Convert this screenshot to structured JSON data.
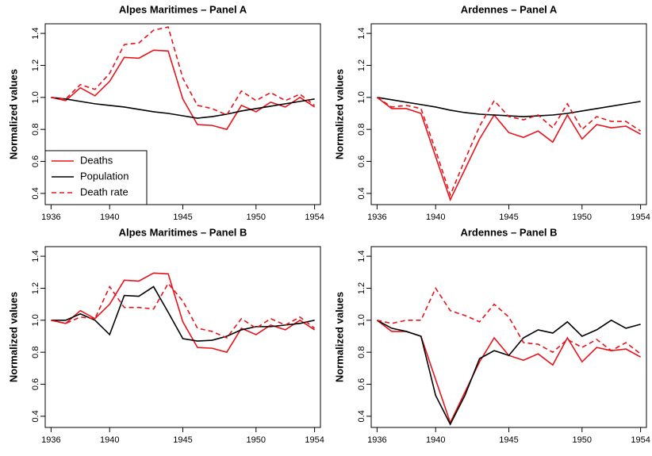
{
  "chart_data": [
    {
      "type": "line",
      "title": "Alpes Maritimes – Panel A",
      "ylabel": "Normalized values",
      "x": [
        1936,
        1937,
        1938,
        1939,
        1940,
        1941,
        1942,
        1943,
        1944,
        1945,
        1946,
        1947,
        1948,
        1949,
        1950,
        1951,
        1952,
        1953,
        1954
      ],
      "xlim": [
        1935.6,
        1954.4
      ],
      "xticks": [
        1936,
        1940,
        1945,
        1950,
        1954
      ],
      "ylim": [
        0.33,
        1.46
      ],
      "yticks": [
        0.4,
        0.6,
        0.8,
        {
          "value": 1,
          "label": "1.0"
        },
        1.2,
        1.4
      ],
      "legend": "bottom-left",
      "series": [
        {
          "name": "Deaths",
          "color": "#e8131b",
          "dash": false,
          "values": [
            1.0,
            0.98,
            1.06,
            1.01,
            1.1,
            1.25,
            1.245,
            1.295,
            1.29,
            0.99,
            0.83,
            0.825,
            0.8,
            0.95,
            0.91,
            0.97,
            0.94,
            1.0,
            0.94
          ]
        },
        {
          "name": "Population",
          "color": "#000000",
          "dash": false,
          "values": [
            1.0,
            0.99,
            0.975,
            0.96,
            0.95,
            0.94,
            0.925,
            0.91,
            0.9,
            0.885,
            0.87,
            0.88,
            0.895,
            0.915,
            0.93,
            0.945,
            0.96,
            0.975,
            0.99
          ]
        },
        {
          "name": "Death rate",
          "color": "#e8131b",
          "dash": true,
          "values": [
            1.0,
            0.99,
            1.08,
            1.05,
            1.15,
            1.33,
            1.34,
            1.42,
            1.44,
            1.12,
            0.95,
            0.93,
            0.89,
            1.04,
            0.98,
            1.03,
            0.98,
            1.02,
            0.95
          ]
        }
      ]
    },
    {
      "type": "line",
      "title": "Ardennes – Panel A",
      "ylabel": "Normalized values",
      "x": [
        1936,
        1937,
        1938,
        1939,
        1940,
        1941,
        1942,
        1943,
        1944,
        1945,
        1946,
        1947,
        1948,
        1949,
        1950,
        1951,
        1952,
        1953,
        1954
      ],
      "xlim": [
        1935.6,
        1954.4
      ],
      "xticks": [
        1936,
        1940,
        1945,
        1950,
        1954
      ],
      "ylim": [
        0.33,
        1.46
      ],
      "yticks": [
        0.4,
        0.6,
        0.8,
        {
          "value": 1,
          "label": "1.0"
        },
        1.2,
        1.4
      ],
      "series": [
        {
          "color": "#e8131b",
          "dash": false,
          "values": [
            1.0,
            0.93,
            0.93,
            0.9,
            0.63,
            0.36,
            0.55,
            0.74,
            0.89,
            0.78,
            0.75,
            0.79,
            0.72,
            0.89,
            0.74,
            0.83,
            0.81,
            0.82,
            0.77
          ]
        },
        {
          "color": "#000000",
          "dash": false,
          "values": [
            1.0,
            0.985,
            0.97,
            0.955,
            0.94,
            0.92,
            0.905,
            0.895,
            0.89,
            0.885,
            0.88,
            0.885,
            0.89,
            0.9,
            0.915,
            0.93,
            0.945,
            0.96,
            0.975
          ]
        },
        {
          "color": "#e8131b",
          "dash": true,
          "values": [
            1.0,
            0.94,
            0.95,
            0.93,
            0.67,
            0.39,
            0.61,
            0.82,
            0.98,
            0.88,
            0.86,
            0.89,
            0.81,
            0.96,
            0.8,
            0.88,
            0.85,
            0.85,
            0.79
          ]
        }
      ]
    },
    {
      "type": "line",
      "title": "Alpes Maritimes – Panel B",
      "ylabel": "Normalized values",
      "x": [
        1936,
        1937,
        1938,
        1939,
        1940,
        1941,
        1942,
        1943,
        1944,
        1945,
        1946,
        1947,
        1948,
        1949,
        1950,
        1951,
        1952,
        1953,
        1954
      ],
      "xlim": [
        1935.6,
        1954.4
      ],
      "xticks": [
        1936,
        1940,
        1945,
        1950,
        1954
      ],
      "ylim": [
        0.33,
        1.46
      ],
      "yticks": [
        0.4,
        0.6,
        0.8,
        {
          "value": 1,
          "label": "1.0"
        },
        1.2,
        1.4
      ],
      "series": [
        {
          "color": "#e8131b",
          "dash": false,
          "values": [
            1.0,
            0.98,
            1.06,
            1.01,
            1.1,
            1.25,
            1.245,
            1.295,
            1.29,
            0.99,
            0.83,
            0.825,
            0.8,
            0.95,
            0.91,
            0.97,
            0.94,
            1.0,
            0.94
          ]
        },
        {
          "color": "#000000",
          "dash": false,
          "values": [
            1.0,
            1.0,
            1.04,
            1.0,
            0.91,
            1.155,
            1.15,
            1.21,
            1.05,
            0.885,
            0.87,
            0.875,
            0.9,
            0.94,
            0.96,
            0.96,
            0.97,
            0.98,
            1.0
          ]
        },
        {
          "color": "#e8131b",
          "dash": true,
          "values": [
            1.0,
            0.98,
            1.02,
            1.01,
            1.21,
            1.08,
            1.08,
            1.07,
            1.23,
            1.12,
            0.95,
            0.93,
            0.89,
            1.01,
            0.95,
            1.01,
            0.97,
            1.02,
            0.95
          ]
        }
      ]
    },
    {
      "type": "line",
      "title": "Ardennes – Panel B",
      "ylabel": "Normalized values",
      "x": [
        1936,
        1937,
        1938,
        1939,
        1940,
        1941,
        1942,
        1943,
        1944,
        1945,
        1946,
        1947,
        1948,
        1949,
        1950,
        1951,
        1952,
        1953,
        1954
      ],
      "xlim": [
        1935.6,
        1954.4
      ],
      "xticks": [
        1936,
        1940,
        1945,
        1950,
        1954
      ],
      "ylim": [
        0.33,
        1.46
      ],
      "yticks": [
        0.4,
        0.6,
        0.8,
        {
          "value": 1,
          "label": "1.0"
        },
        1.2,
        1.4
      ],
      "series": [
        {
          "color": "#e8131b",
          "dash": false,
          "values": [
            1.0,
            0.93,
            0.93,
            0.9,
            0.63,
            0.36,
            0.55,
            0.74,
            0.89,
            0.78,
            0.75,
            0.79,
            0.72,
            0.89,
            0.74,
            0.83,
            0.81,
            0.82,
            0.77
          ]
        },
        {
          "color": "#000000",
          "dash": false,
          "values": [
            1.0,
            0.95,
            0.93,
            0.9,
            0.53,
            0.35,
            0.53,
            0.76,
            0.81,
            0.78,
            0.89,
            0.94,
            0.92,
            0.99,
            0.9,
            0.94,
            1.0,
            0.95,
            0.975
          ]
        },
        {
          "color": "#e8131b",
          "dash": true,
          "values": [
            1.0,
            0.98,
            1.0,
            1.0,
            1.2,
            1.06,
            1.03,
            0.99,
            1.1,
            1.02,
            0.86,
            0.85,
            0.8,
            0.88,
            0.83,
            0.88,
            0.81,
            0.86,
            0.79
          ]
        }
      ]
    }
  ]
}
